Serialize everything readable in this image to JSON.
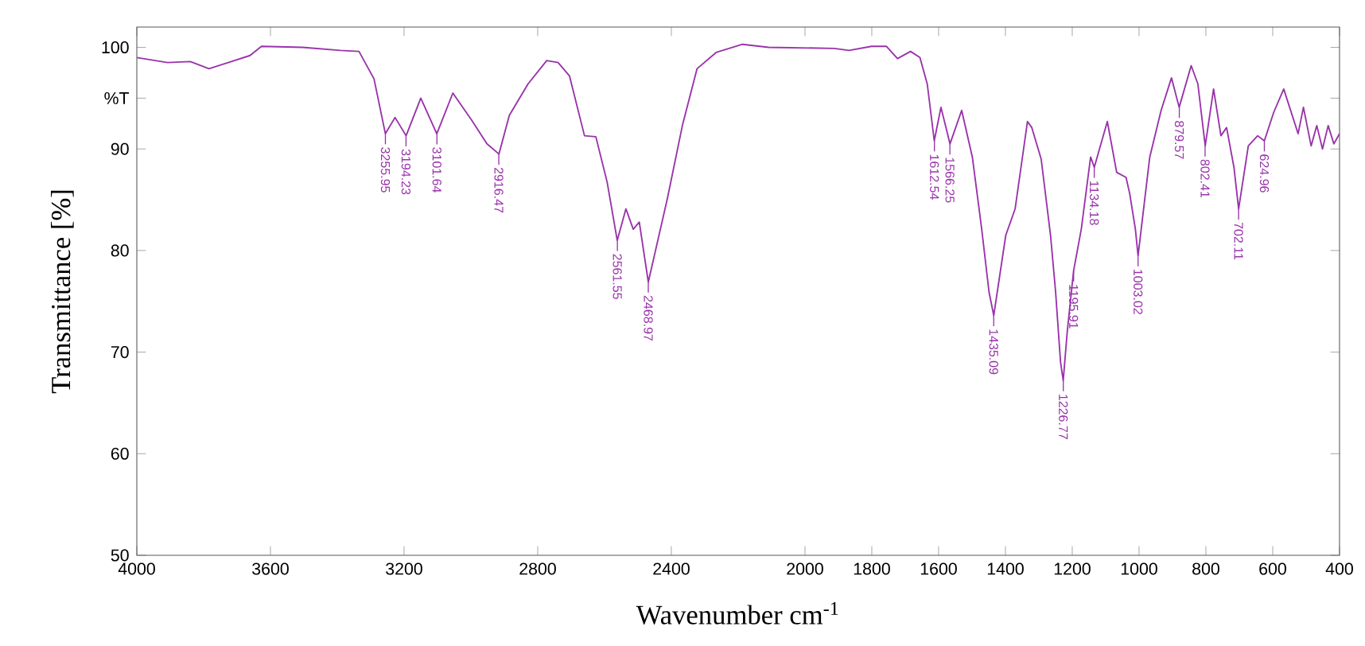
{
  "chart_data": {
    "type": "line",
    "xlabel": "Wavenumber cm$^{-1}$",
    "ylabel": "Transmittance [%]",
    "x": [
      4000,
      3908,
      3840,
      3784,
      3717,
      3661,
      3627,
      3504,
      3391,
      3335,
      3290,
      3256,
      3227,
      3194,
      3150,
      3102,
      3054,
      2997,
      2952,
      2916,
      2885,
      2829,
      2773,
      2739,
      2705,
      2660,
      2626,
      2592,
      2562,
      2536,
      2514,
      2496,
      2469,
      2412,
      2367,
      2323,
      2266,
      2187,
      2109,
      1912,
      1868,
      1801,
      1756,
      1723,
      1684,
      1656,
      1634,
      1613,
      1593,
      1566,
      1531,
      1499,
      1471,
      1449,
      1435,
      1399,
      1371,
      1334,
      1321,
      1293,
      1265,
      1250,
      1235,
      1227,
      1215,
      1196,
      1173,
      1145,
      1134,
      1095,
      1067,
      1039,
      1028,
      1011,
      1003,
      968,
      934,
      903,
      880,
      844,
      824,
      802,
      777,
      755,
      738,
      716,
      702,
      673,
      645,
      625,
      597,
      567,
      524,
      508,
      485,
      468,
      451,
      434,
      417,
      400
    ],
    "series": [
      {
        "color": "#9933aa",
        "values": [
          99.0,
          98.5,
          98.6,
          97.9,
          98.6,
          99.2,
          100.1,
          100.0,
          99.7,
          99.6,
          96.9,
          91.5,
          93.1,
          91.3,
          95.0,
          91.5,
          95.5,
          92.8,
          90.5,
          89.5,
          93.3,
          96.4,
          98.7,
          98.5,
          97.2,
          91.3,
          91.2,
          86.7,
          81.0,
          84.1,
          82.1,
          82.8,
          76.9,
          85.1,
          92.3,
          97.9,
          99.5,
          100.3,
          100.0,
          99.9,
          99.7,
          100.1,
          100.1,
          98.9,
          99.6,
          99.0,
          96.4,
          90.8,
          94.1,
          90.5,
          93.8,
          89.2,
          82.1,
          75.9,
          73.6,
          81.5,
          84.1,
          92.7,
          92.1,
          89.0,
          81.5,
          76.0,
          69.0,
          67.2,
          72.0,
          78.0,
          82.1,
          89.2,
          88.2,
          92.7,
          87.7,
          87.2,
          85.6,
          82.1,
          79.5,
          89.2,
          93.8,
          97.0,
          94.1,
          98.2,
          96.4,
          90.3,
          95.9,
          91.3,
          92.1,
          88.2,
          84.1,
          90.3,
          91.3,
          90.8,
          93.6,
          95.9,
          91.5,
          94.1,
          90.3,
          92.3,
          90.0,
          92.3,
          90.5,
          91.5
        ]
      }
    ],
    "xlim": [
      4000,
      400
    ],
    "ylim": [
      50,
      102
    ],
    "xticks": [
      4000,
      3600,
      3200,
      2800,
      2400,
      2000,
      1800,
      1600,
      1400,
      1200,
      1000,
      800,
      600,
      400
    ],
    "yticks": [
      50,
      60,
      70,
      80,
      90,
      {
        "value": 95,
        "label": "%T"
      },
      100
    ],
    "annotations": [
      {
        "text": "3255.95",
        "x": 3255.95,
        "y": 91.5
      },
      {
        "text": "3194.23",
        "x": 3194.23,
        "y": 91.3
      },
      {
        "text": "3101.64",
        "x": 3101.64,
        "y": 91.5
      },
      {
        "text": "2916.47",
        "x": 2916.47,
        "y": 89.5
      },
      {
        "text": "2561.55",
        "x": 2561.55,
        "y": 81.0
      },
      {
        "text": "2468.97",
        "x": 2468.97,
        "y": 76.9
      },
      {
        "text": "1612.54",
        "x": 1612.54,
        "y": 90.8
      },
      {
        "text": "1566.25",
        "x": 1566.25,
        "y": 90.5
      },
      {
        "text": "1435.09",
        "x": 1435.09,
        "y": 73.6
      },
      {
        "text": "1226.77",
        "x": 1226.77,
        "y": 67.2
      },
      {
        "text": "1195.91",
        "x": 1195.91,
        "y": 78.0
      },
      {
        "text": "1134.18",
        "x": 1134.18,
        "y": 88.2
      },
      {
        "text": "1003.02",
        "x": 1003.02,
        "y": 79.5
      },
      {
        "text": "879.57",
        "x": 879.57,
        "y": 94.1
      },
      {
        "text": "802.41",
        "x": 802.41,
        "y": 90.3
      },
      {
        "text": "702.11",
        "x": 702.11,
        "y": 84.1
      },
      {
        "text": "624.96",
        "x": 624.96,
        "y": 90.8
      }
    ]
  }
}
